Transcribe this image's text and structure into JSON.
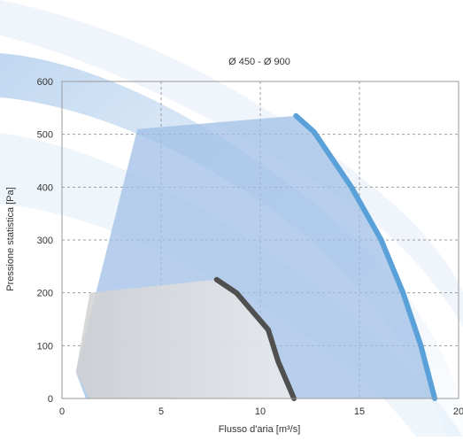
{
  "chart_data": {
    "type": "area",
    "title": "Ø 450 - Ø 900",
    "xlabel": "Flusso d'aria [m³/s]",
    "ylabel": "Pressione statistica [Pa]",
    "xlim": [
      0,
      20
    ],
    "ylim": [
      0,
      600
    ],
    "x_ticks": [
      0,
      5,
      10,
      15,
      20
    ],
    "y_ticks": [
      0,
      100,
      200,
      300,
      400,
      500,
      600
    ],
    "grid": true,
    "colors": {
      "upper_area": "#9fbfe6",
      "lower_area": "#d7d7d7",
      "upper_curve": "#5aa0d9",
      "lower_curve": "#505050",
      "background_swoosh": "#cfe0f3"
    },
    "areas": [
      {
        "fill": "upper_area",
        "points": [
          [
            0.7,
            50
          ],
          [
            3.8,
            510
          ],
          [
            11.8,
            535
          ],
          [
            12.7,
            505
          ],
          [
            14.6,
            400
          ],
          [
            16.1,
            300
          ],
          [
            17.2,
            200
          ],
          [
            18.1,
            100
          ],
          [
            18.8,
            0
          ],
          [
            1.2,
            0
          ]
        ]
      },
      {
        "fill": "lower_area",
        "points": [
          [
            0.7,
            50
          ],
          [
            1.4,
            200
          ],
          [
            7.8,
            225
          ],
          [
            8.8,
            200
          ],
          [
            10.4,
            130
          ],
          [
            10.9,
            70
          ],
          [
            11.7,
            0
          ],
          [
            1.4,
            0
          ]
        ]
      }
    ],
    "series": [
      {
        "color": "upper_curve",
        "points": [
          [
            11.8,
            535
          ],
          [
            12.7,
            505
          ],
          [
            14.6,
            400
          ],
          [
            16.1,
            300
          ],
          [
            17.2,
            200
          ],
          [
            18.1,
            100
          ],
          [
            18.8,
            0
          ]
        ]
      },
      {
        "color": "lower_curve",
        "points": [
          [
            7.8,
            225
          ],
          [
            8.8,
            200
          ],
          [
            10.4,
            130
          ],
          [
            10.9,
            70
          ],
          [
            11.7,
            0
          ]
        ]
      }
    ]
  }
}
